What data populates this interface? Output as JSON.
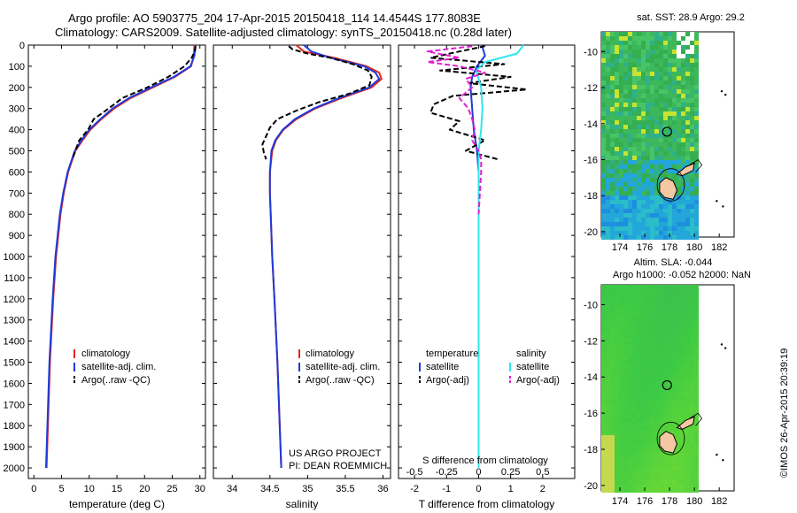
{
  "title_line1": "Argo profile: AO 5903775_204 17-Apr-2015 20150418_114 14.4544S 177.8083E",
  "title_line2": "Climatology: CARS2009. Satellite-adjusted climatology: synTS_20150418.nc (0.28d later)",
  "copyright": "©IMOS 26-Apr-2015 20:39:19",
  "colors": {
    "climatology": "#e8231c",
    "satellite": "#1f3bd9",
    "argo": "#000000",
    "sat_salinity": "#2ee6ef",
    "argo_salinity": "#e01fd0",
    "land": "#f5c8a4",
    "missing": "#ffffff"
  },
  "depth_ticks": [
    0,
    100,
    200,
    300,
    400,
    500,
    600,
    700,
    800,
    900,
    1000,
    1100,
    1200,
    1300,
    1400,
    1500,
    1600,
    1700,
    1800,
    1900,
    2000
  ],
  "temperature_panel": {
    "xlabel": "temperature (deg C)",
    "legend": [
      "climatology",
      "satellite-adj. clim.",
      "Argo(..raw -QC)"
    ]
  },
  "salinity_panel": {
    "xlabel": "salinity",
    "legend": [
      "climatology",
      "satellite-adj. clim.",
      "Argo(..raw -QC)"
    ],
    "project": "US ARGO PROJECT",
    "pi": "PI: DEAN ROEMMICH"
  },
  "difference_panel": {
    "legend_temperature_header": "temperature",
    "legend_salinity_header": "salinity",
    "legend_satellite": "satellite",
    "legend_argo": "Argo(-adj)",
    "top_label": "S difference from climatology",
    "xlabel": "T difference from climatology"
  },
  "sst_map": {
    "title": "sat. SST: 28.9 Argo: 29.2"
  },
  "sla_map": {
    "title1": "Altim. SLA: -0.044",
    "title2": "Argo h1000: -0.052 h2000: NaN"
  },
  "chart_data": [
    {
      "type": "line",
      "title": "",
      "xlabel": "temperature (deg C)",
      "ylabel": "",
      "xlim": [
        -1,
        31
      ],
      "ylim": [
        2050,
        0
      ],
      "xticks": [
        0,
        5,
        10,
        15,
        20,
        25,
        30
      ],
      "series": [
        {
          "name": "climatology",
          "depth": [
            0,
            50,
            100,
            150,
            200,
            250,
            300,
            350,
            400,
            450,
            500,
            600,
            700,
            800,
            1000,
            1200,
            1500,
            2000
          ],
          "values": [
            29.0,
            28.9,
            28.4,
            25.5,
            21.5,
            17.5,
            14.5,
            12.2,
            10.2,
            8.8,
            7.5,
            6.2,
            5.4,
            4.8,
            4.0,
            3.5,
            2.9,
            2.3
          ]
        },
        {
          "name": "satellite-adj. clim.",
          "depth": [
            0,
            50,
            100,
            150,
            200,
            250,
            300,
            350,
            400,
            450,
            500,
            600,
            700,
            800,
            1000,
            1200,
            1500,
            2000
          ],
          "values": [
            29.2,
            29.0,
            28.3,
            25.3,
            21.2,
            17.2,
            14.2,
            12.0,
            10.0,
            8.6,
            7.4,
            6.1,
            5.3,
            4.7,
            3.9,
            3.4,
            2.8,
            2.2
          ]
        },
        {
          "name": "Argo(..raw -QC)",
          "depth": [
            5,
            30,
            60,
            100,
            150,
            200,
            250,
            300,
            350,
            400,
            450,
            500,
            540
          ],
          "values": [
            29.2,
            29.1,
            28.5,
            27.2,
            24.3,
            20.5,
            16.0,
            13.5,
            10.8,
            9.8,
            8.2,
            7.5,
            6.9
          ]
        }
      ]
    },
    {
      "type": "line",
      "xlabel": "salinity",
      "xlim": [
        33.75,
        36.1
      ],
      "ylim": [
        2050,
        0
      ],
      "xticks": [
        34,
        34.5,
        35,
        35.5,
        36
      ],
      "series": [
        {
          "name": "climatology",
          "depth": [
            0,
            30,
            60,
            100,
            130,
            160,
            200,
            250,
            300,
            350,
            400,
            450,
            500,
            600,
            700,
            800,
            1000,
            1200,
            1500,
            2000
          ],
          "values": [
            34.85,
            34.95,
            35.35,
            35.78,
            35.95,
            35.98,
            35.85,
            35.45,
            35.1,
            34.85,
            34.68,
            34.58,
            34.53,
            34.5,
            34.5,
            34.51,
            34.53,
            34.56,
            34.6,
            34.65
          ]
        },
        {
          "name": "satellite-adj. clim.",
          "depth": [
            0,
            30,
            60,
            100,
            130,
            160,
            200,
            250,
            300,
            350,
            400,
            450,
            500,
            600,
            700,
            800,
            1000,
            1200,
            1500,
            2000
          ],
          "values": [
            34.95,
            35.05,
            35.3,
            35.75,
            35.9,
            35.95,
            35.82,
            35.42,
            35.08,
            34.83,
            34.67,
            34.57,
            34.52,
            34.5,
            34.5,
            34.51,
            34.53,
            34.56,
            34.6,
            34.65
          ]
        },
        {
          "name": "Argo(..raw -QC)",
          "depth": [
            5,
            20,
            40,
            60,
            90,
            120,
            150,
            190,
            230,
            270,
            310,
            350,
            390,
            430,
            470,
            510,
            540
          ],
          "values": [
            34.75,
            34.8,
            35.0,
            35.3,
            35.6,
            35.8,
            35.85,
            35.82,
            35.55,
            35.15,
            34.85,
            34.6,
            34.5,
            34.45,
            34.4,
            34.42,
            34.45
          ]
        }
      ]
    },
    {
      "type": "line",
      "xlabel": "T difference from climatology",
      "x2label": "S difference from climatology",
      "xlim": [
        -2.5,
        3
      ],
      "x2lim": [
        -0.625,
        0.75
      ],
      "ylim": [
        2050,
        0
      ],
      "xticks": [
        -2,
        -1,
        0,
        1,
        2
      ],
      "x2ticks": [
        -0.5,
        -0.25,
        0,
        0.25,
        0.5
      ],
      "series": [
        {
          "name": "temperature satellite",
          "axis": "T",
          "depth": [
            0,
            50,
            100,
            150,
            200,
            300,
            400,
            500,
            600,
            800,
            1000,
            1200,
            1500,
            2000
          ],
          "values": [
            0.1,
            0.2,
            -0.05,
            -0.2,
            -0.25,
            -0.2,
            -0.15,
            -0.05,
            0.0,
            0.0,
            0.0,
            0.0,
            0.0,
            0.0
          ]
        },
        {
          "name": "temperature Argo(-adj)",
          "axis": "T",
          "depth": [
            5,
            30,
            60,
            90,
            120,
            150,
            180,
            210,
            240,
            280,
            320,
            360,
            400,
            450,
            500,
            540
          ],
          "values": [
            0.2,
            -0.6,
            -1.5,
            0.8,
            -1.2,
            1.0,
            -0.3,
            1.5,
            -0.8,
            -1.4,
            -1.5,
            -0.6,
            -0.9,
            0.2,
            -0.4,
            0.6
          ]
        },
        {
          "name": "salinity satellite",
          "axis": "S",
          "depth": [
            0,
            40,
            80,
            120,
            160,
            200,
            300,
            400,
            500,
            600,
            800,
            1000,
            1200,
            1500,
            2000
          ],
          "values": [
            0.35,
            0.3,
            0.05,
            -0.02,
            0.0,
            0.02,
            0.03,
            0.02,
            0.0,
            0.0,
            0.0,
            0.0,
            0.0,
            0.0,
            0.0
          ]
        },
        {
          "name": "salinity Argo(-adj)",
          "axis": "S",
          "depth": [
            5,
            30,
            60,
            80,
            100,
            130,
            160,
            200,
            250,
            300,
            350,
            400,
            450,
            500,
            540,
            600,
            700,
            800
          ],
          "values": [
            -0.05,
            -0.4,
            -0.15,
            -0.4,
            -0.15,
            0.05,
            -0.1,
            -0.05,
            -0.15,
            -0.08,
            -0.05,
            -0.03,
            -0.05,
            0.0,
            0.02,
            0.02,
            0.01,
            0.0
          ]
        }
      ]
    },
    {
      "type": "heatmap",
      "title": "sat. SST: 28.9 Argo: 29.2",
      "xlim": [
        172.5,
        183.2
      ],
      "ylim": [
        -20.3,
        -8.9
      ],
      "xticks": [
        174,
        176,
        178,
        180,
        182
      ],
      "yticks": [
        -10,
        -12,
        -14,
        -16,
        -18,
        -20
      ],
      "argo_position": [
        177.8,
        -14.45
      ]
    },
    {
      "type": "heatmap",
      "title": "Altim. SLA: -0.044 / Argo h1000: -0.052 h2000: NaN",
      "xlim": [
        172.5,
        183.2
      ],
      "ylim": [
        -20.3,
        -8.9
      ],
      "xticks": [
        174,
        176,
        178,
        180,
        182
      ],
      "yticks": [
        -10,
        -12,
        -14,
        -16,
        -18,
        -20
      ],
      "argo_position": [
        177.8,
        -14.45
      ]
    }
  ]
}
